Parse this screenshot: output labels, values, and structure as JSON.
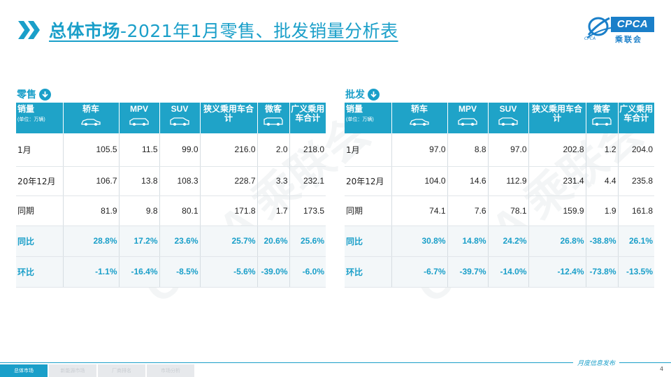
{
  "header": {
    "title_bold": "总体市场",
    "title_rest": "-2021年1月零售、批发销量分析表"
  },
  "logo": {
    "text": "CPCA",
    "cn": "乘联会",
    "sub": "CPCA"
  },
  "watermark": "CPCA 乘联会",
  "columns": {
    "first": "销量",
    "unit": "(单位：万辆)",
    "c1": "轿车",
    "c2": "MPV",
    "c3": "SUV",
    "c4": "狭义乘用车合计",
    "c5": "微客",
    "c6": "广义乘用车合计"
  },
  "retail": {
    "title": "零售",
    "rows": [
      {
        "label": "1月",
        "v": [
          "105.5",
          "11.5",
          "99.0",
          "216.0",
          "2.0",
          "218.0"
        ]
      },
      {
        "label": "20年12月",
        "v": [
          "106.7",
          "13.8",
          "108.3",
          "228.7",
          "3.3",
          "232.1"
        ]
      },
      {
        "label": "同期",
        "v": [
          "81.9",
          "9.8",
          "80.1",
          "171.8",
          "1.7",
          "173.5"
        ]
      },
      {
        "label": "同比",
        "v": [
          "28.8%",
          "17.2%",
          "23.6%",
          "25.7%",
          "20.6%",
          "25.6%"
        ]
      },
      {
        "label": "环比",
        "v": [
          "-1.1%",
          "-16.4%",
          "-8.5%",
          "-5.6%",
          "-39.0%",
          "-6.0%"
        ]
      }
    ]
  },
  "wholesale": {
    "title": "批发",
    "rows": [
      {
        "label": "1月",
        "v": [
          "97.0",
          "8.8",
          "97.0",
          "202.8",
          "1.2",
          "204.0"
        ]
      },
      {
        "label": "20年12月",
        "v": [
          "104.0",
          "14.6",
          "112.9",
          "231.4",
          "4.4",
          "235.8"
        ]
      },
      {
        "label": "同期",
        "v": [
          "74.1",
          "7.6",
          "78.1",
          "159.9",
          "1.9",
          "161.8"
        ]
      },
      {
        "label": "同比",
        "v": [
          "30.8%",
          "14.8%",
          "24.2%",
          "26.8%",
          "-38.8%",
          "26.1%"
        ]
      },
      {
        "label": "环比",
        "v": [
          "-6.7%",
          "-39.7%",
          "-14.0%",
          "-12.4%",
          "-73.8%",
          "-13.5%"
        ]
      }
    ]
  },
  "footer": {
    "text": "月度信息发布",
    "page": "4",
    "tabs": [
      "总体市场",
      "新能源市场",
      "厂商排名",
      "市场分析"
    ]
  },
  "colors": {
    "accent": "#1a9fc9",
    "header_bg": "#1fa3c8"
  }
}
